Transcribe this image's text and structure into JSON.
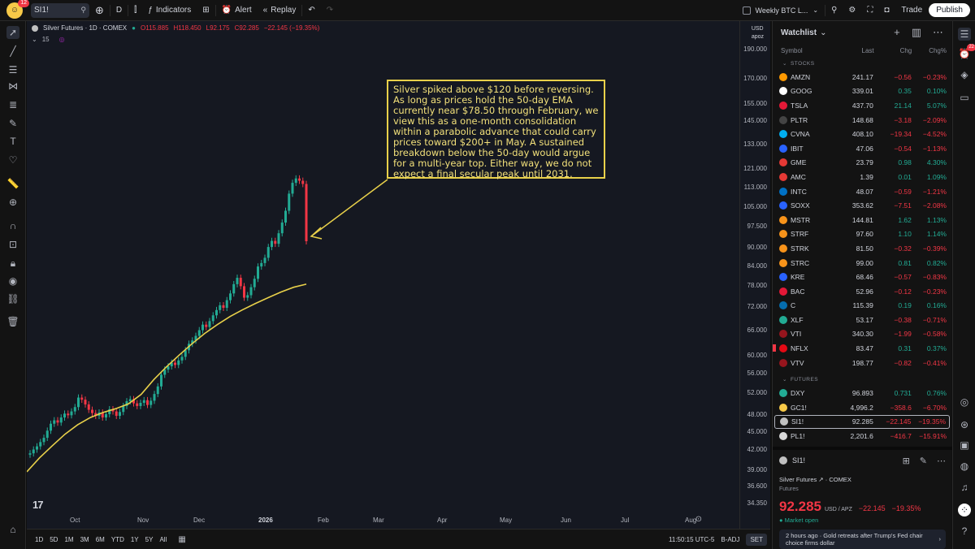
{
  "topbar": {
    "notification_count": "12",
    "symbol": "SI1!",
    "interval": "D",
    "indicators_label": "Indicators",
    "alert_label": "Alert",
    "replay_label": "Replay",
    "layout_name": "Weekly BTC L...",
    "trade_label": "Trade",
    "publish_label": "Publish"
  },
  "chart": {
    "legend_title": "Silver Futures · 1D · COMEX",
    "legend_o": "O115.885",
    "legend_h": "H118.450",
    "legend_l": "L92.175",
    "legend_c": "C92.285",
    "legend_chg": "−22.145 (−19.35%)",
    "indicator_count": "15",
    "currency": "USD",
    "unit": "apoz",
    "annotation": "Silver spiked above $120 before reversing. As long as prices hold the 50-day EMA currently near $78.50 through February, we view this as a one-month consolidation within a parabolic advance that could carry prices toward $200+ in May. A sustained breakdown below the 50-day would argue for a multi-year top. Either way, we do not expect a final secular peak until 2031.",
    "ranges": [
      "1D",
      "5D",
      "1M",
      "3M",
      "6M",
      "YTD",
      "1Y",
      "5Y",
      "All"
    ],
    "clock": "11:50:15 UTC-5",
    "badj": "B-ADJ",
    "set": "SET"
  },
  "chart_data": {
    "type": "candlestick",
    "title": "Silver Futures · 1D · COMEX",
    "price_ticks": [
      "190.000",
      "170.000",
      "155.000",
      "145.000",
      "133.000",
      "121.000",
      "113.000",
      "105.000",
      "97.500",
      "90.000",
      "84.000",
      "78.000",
      "72.000",
      "66.000",
      "60.000",
      "56.000",
      "52.000",
      "48.000",
      "45.000",
      "42.000",
      "39.000",
      "36.600",
      "34.350"
    ],
    "time_ticks": [
      "Oct",
      "Nov",
      "Dec",
      "2026",
      "Feb",
      "Mar",
      "Apr",
      "May",
      "Jun",
      "Jul",
      "Aug"
    ],
    "close_series": [
      41.5,
      42.1,
      42.6,
      43.3,
      44.0,
      45.2,
      46.4,
      47.0,
      46.6,
      47.5,
      48.2,
      47.9,
      48.6,
      49.4,
      51.2,
      50.8,
      49.9,
      48.9,
      48.3,
      47.8,
      48.4,
      47.5,
      48.1,
      49.0,
      48.6,
      47.8,
      48.5,
      49.6,
      50.5,
      50.9,
      50.1,
      49.6,
      50.2,
      50.7,
      49.8,
      50.6,
      51.9,
      53.4,
      55.8,
      56.9,
      57.6,
      58.4,
      57.9,
      58.9,
      59.7,
      61.2,
      62.7,
      63.5,
      64.6,
      66.0,
      67.4,
      66.8,
      68.3,
      69.8,
      71.2,
      72.5,
      71.8,
      73.9,
      75.8,
      78.5,
      80.4,
      77.9,
      74.6,
      75.3,
      77.6,
      80.1,
      83.9,
      85.0,
      86.7,
      90.3,
      92.4,
      91.4,
      95.1,
      99.0,
      103.5,
      110.4,
      115.0,
      116.9,
      115.9,
      114.5,
      92.285
    ],
    "ema50_series": [
      38.7,
      40.8,
      42.7,
      44.6,
      46.2,
      47.5,
      48.4,
      49.1,
      50.0,
      51.8,
      54.8,
      57.5,
      60.1,
      62.7,
      65.2,
      67.4,
      69.5,
      71.3,
      73.0,
      74.6,
      76.2,
      77.6,
      78.5
    ],
    "last_price": 92.285,
    "ema50_last": 78.5
  },
  "watchlist": {
    "title": "Watchlist",
    "cols": {
      "symbol": "Symbol",
      "last": "Last",
      "chg": "Chg",
      "chgp": "Chg%"
    },
    "stocks_label": "STOCKS",
    "futures_label": "FUTURES",
    "stocks": [
      {
        "sym": "AMZN",
        "last": "241.17",
        "chg": "−0.56",
        "chgp": "−0.23%",
        "dir": "down",
        "color": "#ff9900"
      },
      {
        "sym": "GOOG",
        "last": "339.01",
        "chg": "0.35",
        "chgp": "0.10%",
        "dir": "up",
        "color": "#ffffff"
      },
      {
        "sym": "TSLA",
        "last": "437.70",
        "chg": "21.14",
        "chgp": "5.07%",
        "dir": "up",
        "color": "#e31937"
      },
      {
        "sym": "PLTR",
        "last": "148.68",
        "chg": "−3.18",
        "chgp": "−2.09%",
        "dir": "down",
        "color": "#444444"
      },
      {
        "sym": "CVNA",
        "last": "408.10",
        "chg": "−19.34",
        "chgp": "−4.52%",
        "dir": "down",
        "color": "#00aeef"
      },
      {
        "sym": "IBIT",
        "last": "47.06",
        "chg": "−0.54",
        "chgp": "−1.13%",
        "dir": "down",
        "color": "#2962ff"
      },
      {
        "sym": "GME",
        "last": "23.79",
        "chg": "0.98",
        "chgp": "4.30%",
        "dir": "up",
        "color": "#e53935"
      },
      {
        "sym": "AMC",
        "last": "1.39",
        "chg": "0.01",
        "chgp": "1.09%",
        "dir": "up",
        "color": "#e53935"
      },
      {
        "sym": "INTC",
        "last": "48.07",
        "chg": "−0.59",
        "chgp": "−1.21%",
        "dir": "down",
        "color": "#0071c5"
      },
      {
        "sym": "SOXX",
        "last": "353.62",
        "chg": "−7.51",
        "chgp": "−2.08%",
        "dir": "down",
        "color": "#2962ff"
      },
      {
        "sym": "MSTR",
        "last": "144.81",
        "chg": "1.62",
        "chgp": "1.13%",
        "dir": "up",
        "color": "#f7931a"
      },
      {
        "sym": "STRF",
        "last": "97.60",
        "chg": "1.10",
        "chgp": "1.14%",
        "dir": "up",
        "color": "#f7931a"
      },
      {
        "sym": "STRK",
        "last": "81.50",
        "chg": "−0.32",
        "chgp": "−0.39%",
        "dir": "down",
        "color": "#f7931a"
      },
      {
        "sym": "STRC",
        "last": "99.00",
        "chg": "0.81",
        "chgp": "0.82%",
        "dir": "up",
        "color": "#f7931a"
      },
      {
        "sym": "KRE",
        "last": "68.46",
        "chg": "−0.57",
        "chgp": "−0.83%",
        "dir": "down",
        "color": "#2962ff"
      },
      {
        "sym": "BAC",
        "last": "52.96",
        "chg": "−0.12",
        "chgp": "−0.23%",
        "dir": "down",
        "color": "#e31837"
      },
      {
        "sym": "C",
        "last": "115.39",
        "chg": "0.19",
        "chgp": "0.16%",
        "dir": "up",
        "color": "#056dae"
      },
      {
        "sym": "XLF",
        "last": "53.17",
        "chg": "−0.38",
        "chgp": "−0.71%",
        "dir": "down",
        "color": "#22ab94"
      },
      {
        "sym": "VTI",
        "last": "340.30",
        "chg": "−1.99",
        "chgp": "−0.58%",
        "dir": "down",
        "color": "#96151d"
      },
      {
        "sym": "NFLX",
        "last": "83.47",
        "chg": "0.31",
        "chgp": "0.37%",
        "dir": "up",
        "color": "#e50914",
        "flag": true
      },
      {
        "sym": "VTV",
        "last": "198.77",
        "chg": "−0.82",
        "chgp": "−0.41%",
        "dir": "down",
        "color": "#96151d"
      }
    ],
    "futures": [
      {
        "sym": "DXY",
        "last": "96.893",
        "chg": "0.731",
        "chgp": "0.76%",
        "dir": "up",
        "color": "#22ab94"
      },
      {
        "sym": "GC1!",
        "last": "4,996.2",
        "chg": "−358.6",
        "chgp": "−6.70%",
        "dir": "down",
        "color": "#f7c948"
      },
      {
        "sym": "SI1!",
        "last": "92.285",
        "chg": "−22.145",
        "chgp": "−19.35%",
        "dir": "down",
        "color": "#c0c0c0",
        "selected": true
      },
      {
        "sym": "PL1!",
        "last": "2,201.6",
        "chg": "−416.7",
        "chgp": "−15.91%",
        "dir": "down",
        "color": "#d9d9d9"
      }
    ]
  },
  "detail": {
    "symbol": "SI1!",
    "name": "Silver Futures",
    "exchange": "COMEX",
    "category": "Futures",
    "price": "92.285",
    "unit": "USD / APZ",
    "change": "−22.145",
    "change_pct": "−19.35%",
    "status": "Market open",
    "news": "2 hours ago · Gold retreats after Trump's Fed chair choice firms dollar"
  }
}
